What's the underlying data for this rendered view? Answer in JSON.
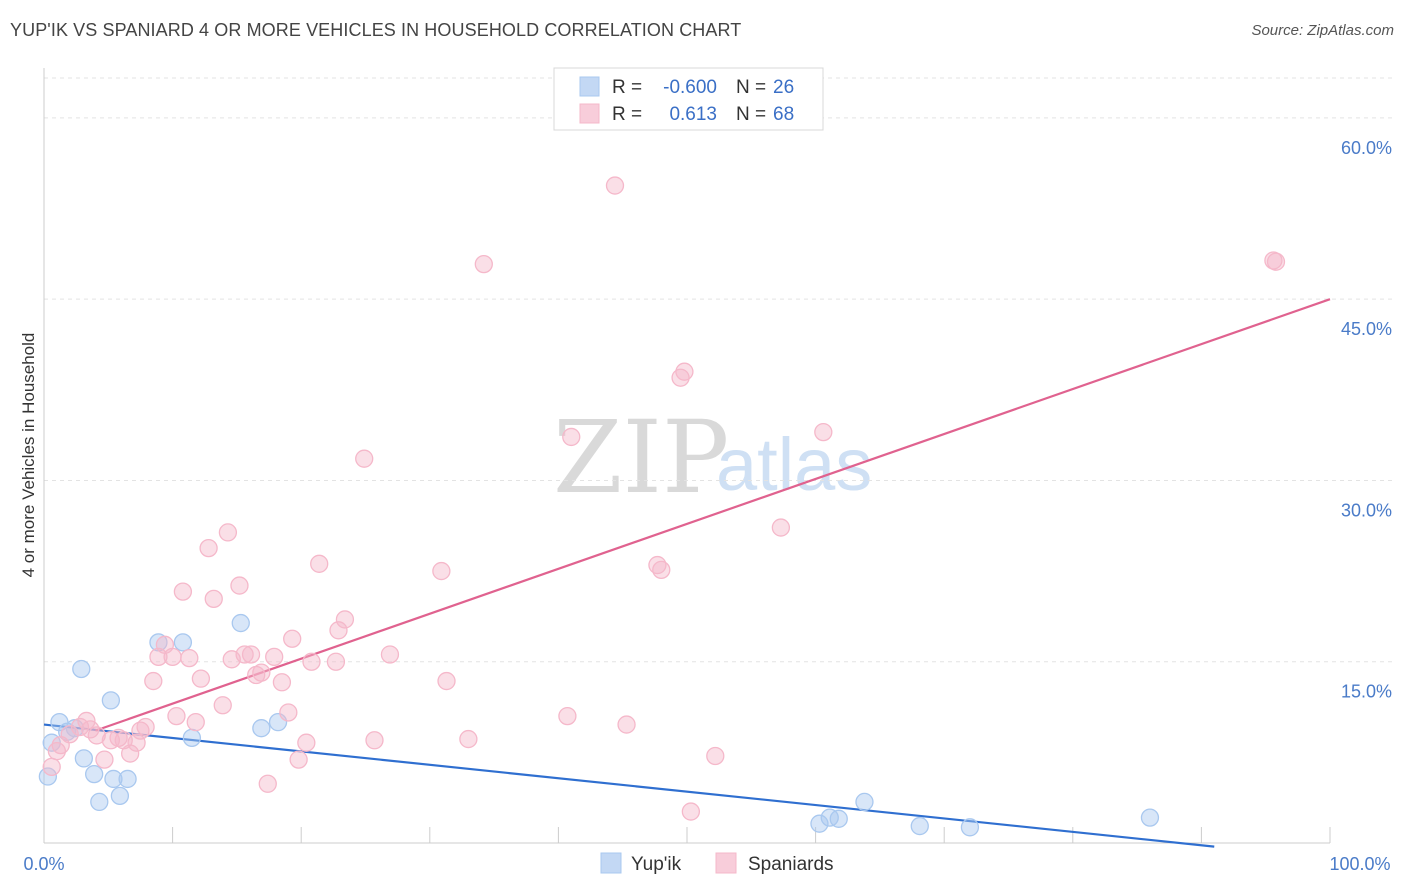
{
  "title": "YUP'IK VS SPANIARD 4 OR MORE VEHICLES IN HOUSEHOLD CORRELATION CHART",
  "source": "Source: ZipAtlas.com",
  "watermark": {
    "zip": "ZIP",
    "atlas": "atlas"
  },
  "legend": {
    "rows": [
      {
        "r_label": "R =",
        "r_value": "-0.600",
        "n_label": "N =",
        "n_value": "26",
        "color": "#a9c8ef"
      },
      {
        "r_label": "R =",
        "r_value": "0.613",
        "n_label": "N =",
        "n_value": "68",
        "color": "#f5b8ca"
      }
    ]
  },
  "bottom_legend": [
    {
      "label": "Yup'ik",
      "color": "#a9c8ef"
    },
    {
      "label": "Spaniards",
      "color": "#f5b8ca"
    }
  ],
  "chart_data": {
    "type": "scatter",
    "ylabel": "4 or more Vehicles in Household",
    "xlim": [
      0,
      100
    ],
    "ylim": [
      0,
      60
    ],
    "x_tick_labels": {
      "min": "0.0%",
      "max": "100.0%"
    },
    "y_ticks": [
      {
        "value": 15,
        "label": "15.0%"
      },
      {
        "value": 30,
        "label": "30.0%"
      },
      {
        "value": 45,
        "label": "45.0%"
      },
      {
        "value": 60,
        "label": "60.0%"
      }
    ],
    "grid": true,
    "series": [
      {
        "name": "Yup'ik",
        "color": "#a9c8ef",
        "line_color": "#2f6fd0",
        "trend": {
          "x": [
            0,
            91
          ],
          "y": [
            9.8,
            -0.3
          ]
        },
        "points": [
          {
            "x": 0.3,
            "y": 5.5
          },
          {
            "x": 0.6,
            "y": 8.3
          },
          {
            "x": 1.2,
            "y": 10.0
          },
          {
            "x": 1.8,
            "y": 9.2
          },
          {
            "x": 2.4,
            "y": 9.5
          },
          {
            "x": 2.9,
            "y": 14.4
          },
          {
            "x": 3.1,
            "y": 7.0
          },
          {
            "x": 3.9,
            "y": 5.7
          },
          {
            "x": 4.3,
            "y": 3.4
          },
          {
            "x": 5.2,
            "y": 11.8
          },
          {
            "x": 5.4,
            "y": 5.3
          },
          {
            "x": 5.9,
            "y": 3.9
          },
          {
            "x": 6.5,
            "y": 5.3
          },
          {
            "x": 8.9,
            "y": 16.6
          },
          {
            "x": 10.8,
            "y": 16.6
          },
          {
            "x": 11.5,
            "y": 8.7
          },
          {
            "x": 15.3,
            "y": 18.2
          },
          {
            "x": 16.9,
            "y": 9.5
          },
          {
            "x": 18.2,
            "y": 10.0
          },
          {
            "x": 60.3,
            "y": 1.6
          },
          {
            "x": 61.1,
            "y": 2.1
          },
          {
            "x": 61.8,
            "y": 2.0
          },
          {
            "x": 63.8,
            "y": 3.4
          },
          {
            "x": 68.1,
            "y": 1.4
          },
          {
            "x": 72.0,
            "y": 1.3
          },
          {
            "x": 86.0,
            "y": 2.1
          }
        ]
      },
      {
        "name": "Spaniards",
        "color": "#f5b8ca",
        "line_color": "#e0628f",
        "trend": {
          "x": [
            4,
            100
          ],
          "y": [
            9.3,
            45.0
          ]
        },
        "points": [
          {
            "x": 0.6,
            "y": 6.3
          },
          {
            "x": 1.0,
            "y": 7.6
          },
          {
            "x": 1.3,
            "y": 8.1
          },
          {
            "x": 2.0,
            "y": 9.0
          },
          {
            "x": 2.8,
            "y": 9.6
          },
          {
            "x": 3.3,
            "y": 10.1
          },
          {
            "x": 3.6,
            "y": 9.4
          },
          {
            "x": 4.1,
            "y": 8.9
          },
          {
            "x": 4.7,
            "y": 6.9
          },
          {
            "x": 5.2,
            "y": 8.5
          },
          {
            "x": 5.8,
            "y": 8.7
          },
          {
            "x": 6.2,
            "y": 8.5
          },
          {
            "x": 6.7,
            "y": 7.4
          },
          {
            "x": 7.2,
            "y": 8.3
          },
          {
            "x": 7.5,
            "y": 9.3
          },
          {
            "x": 7.9,
            "y": 9.6
          },
          {
            "x": 8.5,
            "y": 13.4
          },
          {
            "x": 8.9,
            "y": 15.4
          },
          {
            "x": 9.4,
            "y": 16.4
          },
          {
            "x": 10.0,
            "y": 15.4
          },
          {
            "x": 10.3,
            "y": 10.5
          },
          {
            "x": 10.8,
            "y": 20.8
          },
          {
            "x": 11.3,
            "y": 15.3
          },
          {
            "x": 11.8,
            "y": 10.0
          },
          {
            "x": 12.2,
            "y": 13.6
          },
          {
            "x": 12.8,
            "y": 24.4
          },
          {
            "x": 13.2,
            "y": 20.2
          },
          {
            "x": 13.9,
            "y": 11.4
          },
          {
            "x": 14.3,
            "y": 25.7
          },
          {
            "x": 14.6,
            "y": 15.2
          },
          {
            "x": 15.2,
            "y": 21.3
          },
          {
            "x": 15.6,
            "y": 15.6
          },
          {
            "x": 16.1,
            "y": 15.6
          },
          {
            "x": 16.5,
            "y": 13.9
          },
          {
            "x": 16.9,
            "y": 14.1
          },
          {
            "x": 17.4,
            "y": 4.9
          },
          {
            "x": 17.9,
            "y": 15.4
          },
          {
            "x": 18.5,
            "y": 13.3
          },
          {
            "x": 19.0,
            "y": 10.8
          },
          {
            "x": 19.3,
            "y": 16.9
          },
          {
            "x": 19.8,
            "y": 6.9
          },
          {
            "x": 20.4,
            "y": 8.3
          },
          {
            "x": 20.8,
            "y": 15.0
          },
          {
            "x": 21.4,
            "y": 23.1
          },
          {
            "x": 22.7,
            "y": 15.0
          },
          {
            "x": 22.9,
            "y": 17.6
          },
          {
            "x": 23.4,
            "y": 18.5
          },
          {
            "x": 24.9,
            "y": 31.8
          },
          {
            "x": 25.7,
            "y": 8.5
          },
          {
            "x": 26.9,
            "y": 15.6
          },
          {
            "x": 30.9,
            "y": 22.5
          },
          {
            "x": 31.3,
            "y": 13.4
          },
          {
            "x": 33.0,
            "y": 8.6
          },
          {
            "x": 34.2,
            "y": 47.9
          },
          {
            "x": 40.7,
            "y": 10.5
          },
          {
            "x": 41.0,
            "y": 33.6
          },
          {
            "x": 44.4,
            "y": 54.4
          },
          {
            "x": 45.3,
            "y": 9.8
          },
          {
            "x": 47.7,
            "y": 23.0
          },
          {
            "x": 48.0,
            "y": 22.6
          },
          {
            "x": 49.5,
            "y": 38.5
          },
          {
            "x": 49.8,
            "y": 39.0
          },
          {
            "x": 50.3,
            "y": 2.6
          },
          {
            "x": 52.2,
            "y": 7.2
          },
          {
            "x": 57.3,
            "y": 26.1
          },
          {
            "x": 60.6,
            "y": 34.0
          },
          {
            "x": 95.6,
            "y": 48.2
          },
          {
            "x": 95.8,
            "y": 48.1
          }
        ]
      }
    ]
  }
}
